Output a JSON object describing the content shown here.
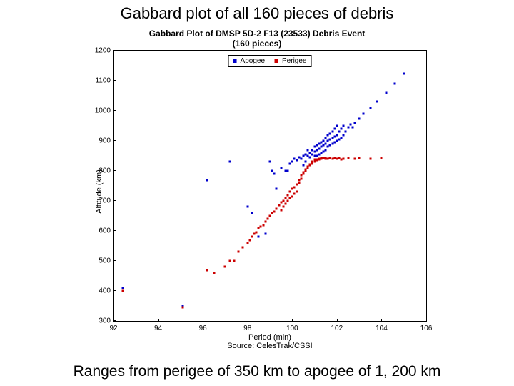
{
  "header": "Gabbard plot of all 160 pieces of debris",
  "footer": "Ranges from perigee of 350 km to apogee of 1, 200 km",
  "chart": {
    "type": "scatter",
    "title_line1": "Gabbard Plot of DMSP 5D-2 F13 (23533) Debris Event",
    "title_line2": "(160 pieces)",
    "xlabel": "Period (min)",
    "ylabel": "Altitude (km)",
    "source": "Source: CelesTrak/CSSI",
    "title_fontsize": 12,
    "label_fontsize": 11,
    "tick_fontsize": 10,
    "xlim": [
      92,
      106
    ],
    "ylim": [
      300,
      1200
    ],
    "xticks": [
      92,
      94,
      96,
      98,
      100,
      102,
      104,
      106
    ],
    "yticks": [
      300,
      400,
      500,
      600,
      700,
      800,
      900,
      1000,
      1100,
      1200
    ],
    "background_color": "#ffffff",
    "border_color": "#000000",
    "marker_size": 3,
    "legend": {
      "items": [
        {
          "label": "Apogee",
          "color": "#0000cc"
        },
        {
          "label": "Perigee",
          "color": "#cc0000"
        }
      ]
    },
    "series": [
      {
        "name": "Apogee",
        "color": "#0000cc",
        "points": [
          [
            92.4,
            410
          ],
          [
            95.1,
            350
          ],
          [
            96.2,
            770
          ],
          [
            97.2,
            830
          ],
          [
            98.0,
            680
          ],
          [
            98.2,
            660
          ],
          [
            98.5,
            580
          ],
          [
            98.8,
            590
          ],
          [
            99.0,
            830
          ],
          [
            99.1,
            800
          ],
          [
            99.2,
            790
          ],
          [
            99.3,
            740
          ],
          [
            99.5,
            810
          ],
          [
            99.7,
            800
          ],
          [
            99.8,
            800
          ],
          [
            99.9,
            825
          ],
          [
            100.0,
            830
          ],
          [
            100.1,
            840
          ],
          [
            100.2,
            835
          ],
          [
            100.3,
            845
          ],
          [
            100.4,
            840
          ],
          [
            100.5,
            850
          ],
          [
            100.5,
            820
          ],
          [
            100.6,
            855
          ],
          [
            100.6,
            830
          ],
          [
            100.7,
            850
          ],
          [
            100.7,
            870
          ],
          [
            100.8,
            845
          ],
          [
            100.8,
            860
          ],
          [
            100.9,
            855
          ],
          [
            100.9,
            870
          ],
          [
            101.0,
            850
          ],
          [
            101.0,
            865
          ],
          [
            101.0,
            880
          ],
          [
            101.1,
            850
          ],
          [
            101.1,
            870
          ],
          [
            101.1,
            885
          ],
          [
            101.2,
            855
          ],
          [
            101.2,
            875
          ],
          [
            101.2,
            890
          ],
          [
            101.3,
            860
          ],
          [
            101.3,
            880
          ],
          [
            101.3,
            895
          ],
          [
            101.4,
            865
          ],
          [
            101.4,
            885
          ],
          [
            101.4,
            900
          ],
          [
            101.5,
            870
          ],
          [
            101.5,
            890
          ],
          [
            101.5,
            910
          ],
          [
            101.6,
            880
          ],
          [
            101.6,
            900
          ],
          [
            101.6,
            920
          ],
          [
            101.7,
            885
          ],
          [
            101.7,
            905
          ],
          [
            101.7,
            925
          ],
          [
            101.8,
            890
          ],
          [
            101.8,
            910
          ],
          [
            101.8,
            930
          ],
          [
            101.9,
            895
          ],
          [
            101.9,
            915
          ],
          [
            101.9,
            940
          ],
          [
            102.0,
            900
          ],
          [
            102.0,
            920
          ],
          [
            102.0,
            950
          ],
          [
            102.1,
            905
          ],
          [
            102.1,
            930
          ],
          [
            102.2,
            910
          ],
          [
            102.2,
            940
          ],
          [
            102.3,
            920
          ],
          [
            102.3,
            950
          ],
          [
            102.4,
            930
          ],
          [
            102.5,
            945
          ],
          [
            102.6,
            955
          ],
          [
            102.7,
            945
          ],
          [
            102.8,
            960
          ],
          [
            103.0,
            975
          ],
          [
            103.2,
            990
          ],
          [
            103.5,
            1010
          ],
          [
            103.8,
            1030
          ],
          [
            104.2,
            1060
          ],
          [
            104.6,
            1090
          ],
          [
            105.0,
            1125
          ]
        ]
      },
      {
        "name": "Perigee",
        "color": "#cc0000",
        "points": [
          [
            92.4,
            400
          ],
          [
            95.1,
            345
          ],
          [
            96.2,
            470
          ],
          [
            96.5,
            460
          ],
          [
            97.0,
            480
          ],
          [
            97.2,
            500
          ],
          [
            97.4,
            500
          ],
          [
            97.6,
            530
          ],
          [
            97.8,
            545
          ],
          [
            98.0,
            560
          ],
          [
            98.1,
            570
          ],
          [
            98.2,
            580
          ],
          [
            98.3,
            590
          ],
          [
            98.4,
            595
          ],
          [
            98.5,
            610
          ],
          [
            98.6,
            615
          ],
          [
            98.7,
            620
          ],
          [
            98.8,
            630
          ],
          [
            98.9,
            640
          ],
          [
            99.0,
            650
          ],
          [
            99.1,
            660
          ],
          [
            99.2,
            665
          ],
          [
            99.3,
            675
          ],
          [
            99.4,
            685
          ],
          [
            99.5,
            695
          ],
          [
            99.5,
            670
          ],
          [
            99.6,
            700
          ],
          [
            99.6,
            680
          ],
          [
            99.7,
            710
          ],
          [
            99.7,
            690
          ],
          [
            99.8,
            720
          ],
          [
            99.8,
            700
          ],
          [
            99.9,
            730
          ],
          [
            99.9,
            710
          ],
          [
            100.0,
            740
          ],
          [
            100.0,
            715
          ],
          [
            100.1,
            745
          ],
          [
            100.1,
            725
          ],
          [
            100.2,
            755
          ],
          [
            100.2,
            730
          ],
          [
            100.3,
            760
          ],
          [
            100.3,
            770
          ],
          [
            100.4,
            775
          ],
          [
            100.4,
            785
          ],
          [
            100.5,
            790
          ],
          [
            100.5,
            795
          ],
          [
            100.6,
            800
          ],
          [
            100.6,
            805
          ],
          [
            100.7,
            810
          ],
          [
            100.7,
            815
          ],
          [
            100.8,
            818
          ],
          [
            100.8,
            822
          ],
          [
            100.9,
            825
          ],
          [
            100.9,
            830
          ],
          [
            101.0,
            830
          ],
          [
            101.0,
            835
          ],
          [
            101.0,
            838
          ],
          [
            101.1,
            835
          ],
          [
            101.1,
            838
          ],
          [
            101.2,
            838
          ],
          [
            101.2,
            840
          ],
          [
            101.3,
            842
          ],
          [
            101.3,
            840
          ],
          [
            101.4,
            842
          ],
          [
            101.5,
            840
          ],
          [
            101.5,
            843
          ],
          [
            101.6,
            840
          ],
          [
            101.7,
            842
          ],
          [
            101.8,
            840
          ],
          [
            101.9,
            843
          ],
          [
            102.0,
            840
          ],
          [
            102.1,
            842
          ],
          [
            102.2,
            838
          ],
          [
            102.3,
            840
          ],
          [
            102.5,
            842
          ],
          [
            102.8,
            840
          ],
          [
            103.0,
            843
          ],
          [
            103.5,
            840
          ],
          [
            104.0,
            842
          ]
        ]
      }
    ]
  }
}
